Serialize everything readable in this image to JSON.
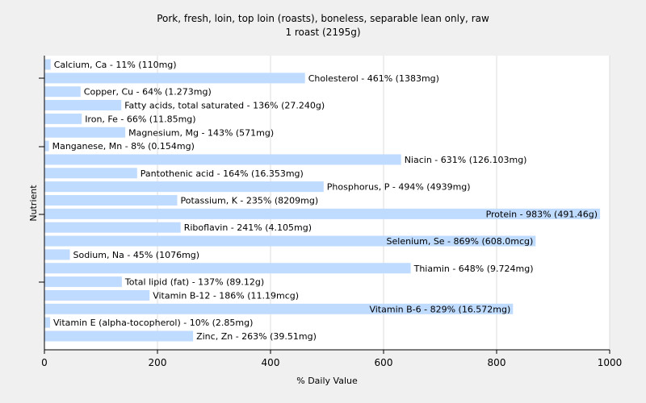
{
  "chart_data": {
    "type": "bar",
    "orientation": "horizontal",
    "title": "Pork, fresh, loin, top loin (roasts), boneless, separable lean only, raw",
    "subtitle": "1 roast (2195g)",
    "xlabel": "% Daily Value",
    "ylabel": "Nutrient",
    "xlim": [
      0,
      1000
    ],
    "xticks": [
      0,
      200,
      400,
      600,
      800,
      1000
    ],
    "grid": "vertical",
    "colors": {
      "bar": "#bfdbff",
      "plot_bg": "#ffffff",
      "page_bg": "#f0f0f0",
      "gridline": "#dddddd"
    },
    "categories": [
      "Calcium, Ca",
      "Cholesterol",
      "Copper, Cu",
      "Fatty acids, total saturated",
      "Iron, Fe",
      "Magnesium, Mg",
      "Manganese, Mn",
      "Niacin",
      "Pantothenic acid",
      "Phosphorus, P",
      "Potassium, K",
      "Protein",
      "Riboflavin",
      "Selenium, Se",
      "Sodium, Na",
      "Thiamin",
      "Total lipid (fat)",
      "Vitamin B-12",
      "Vitamin B-6",
      "Vitamin E (alpha-tocopherol)",
      "Zinc, Zn"
    ],
    "values": [
      11,
      461,
      64,
      136,
      66,
      143,
      8,
      631,
      164,
      494,
      235,
      983,
      241,
      869,
      45,
      648,
      137,
      186,
      829,
      10,
      263
    ],
    "bar_labels": [
      "Calcium, Ca - 11% (110mg)",
      "Cholesterol - 461% (1383mg)",
      "Copper, Cu - 64% (1.273mg)",
      "Fatty acids, total saturated - 136% (27.240g)",
      "Iron, Fe - 66% (11.85mg)",
      "Magnesium, Mg - 143% (571mg)",
      "Manganese, Mn - 8% (0.154mg)",
      "Niacin - 631% (126.103mg)",
      "Pantothenic acid - 164% (16.353mg)",
      "Phosphorus, P - 494% (4939mg)",
      "Potassium, K - 235% (8209mg)",
      "Protein - 983% (491.46g)",
      "Riboflavin - 241% (4.105mg)",
      "Selenium, Se - 869% (608.0mcg)",
      "Sodium, Na - 45% (1076mg)",
      "Thiamin - 648% (9.724mg)",
      "Total lipid (fat) - 137% (89.12g)",
      "Vitamin B-12 - 186% (11.19mcg)",
      "Vitamin B-6 - 829% (16.572mg)",
      "Vitamin E (alpha-tocopherol) - 10% (2.85mg)",
      "Zinc, Zn - 263% (39.51mg)"
    ]
  }
}
